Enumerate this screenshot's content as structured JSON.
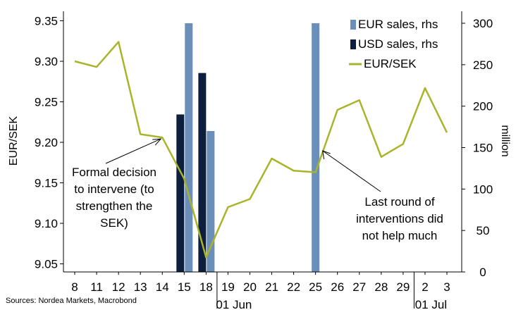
{
  "chart_data": {
    "type": "bar",
    "title": "",
    "x_labels": [
      "8",
      "11",
      "12",
      "13",
      "14",
      "15",
      "18",
      "19",
      "20",
      "21",
      "22",
      "25",
      "26",
      "27",
      "28",
      "29",
      "2",
      "3"
    ],
    "month_labels": [
      {
        "label": "01 Jun",
        "after_index": 7
      },
      {
        "label": "01 Jul",
        "after_index": 16
      }
    ],
    "left_axis": {
      "label": "EUR/SEK",
      "min": 9.04,
      "max": 9.36,
      "ticks": [
        "9.05",
        "9.10",
        "9.15",
        "9.20",
        "9.25",
        "9.30",
        "9.35"
      ]
    },
    "right_axis": {
      "label": "million",
      "min": 0,
      "max": 300,
      "ticks": [
        "0",
        "50",
        "100",
        "150",
        "200",
        "250",
        "300"
      ]
    },
    "series": [
      {
        "name": "EUR sales, rhs",
        "type": "bar",
        "axis": "right",
        "color": "#6b8fb8",
        "values": [
          null,
          null,
          null,
          null,
          null,
          300,
          170,
          null,
          null,
          null,
          null,
          300,
          null,
          null,
          null,
          null,
          null,
          null
        ]
      },
      {
        "name": "USD sales, rhs",
        "type": "bar",
        "axis": "right",
        "color": "#0d1f3c",
        "values": [
          null,
          null,
          null,
          null,
          null,
          190,
          240,
          null,
          null,
          null,
          null,
          null,
          null,
          null,
          null,
          null,
          null,
          null
        ]
      },
      {
        "name": "EUR/SEK",
        "type": "line",
        "axis": "left",
        "color": "#a9b42a",
        "values": [
          9.3,
          9.293,
          9.324,
          9.21,
          9.206,
          9.155,
          9.058,
          9.12,
          9.13,
          9.18,
          9.165,
          9.163,
          9.24,
          9.252,
          9.182,
          9.198,
          9.267,
          9.212
        ]
      }
    ],
    "legend": {
      "position": "top-right"
    },
    "annotations": [
      {
        "lines": [
          "Formal decision",
          "to intervene (to",
          "strengthen the",
          "SEK)"
        ],
        "points_to_index": 4
      },
      {
        "lines": [
          "Last round of",
          "interventions did",
          "not help much"
        ],
        "points_to_index": 11
      }
    ],
    "grid": false
  },
  "source": "Sources: Nordea Markets, Macrobond"
}
